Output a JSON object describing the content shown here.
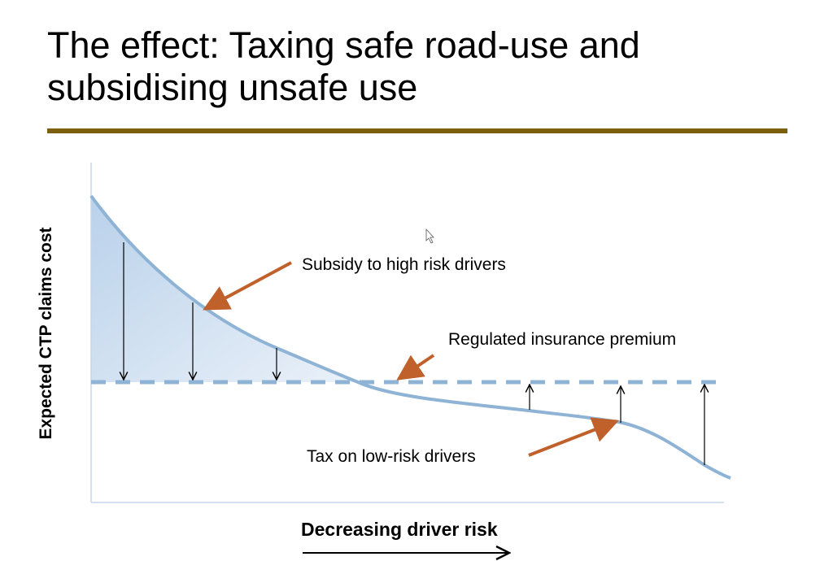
{
  "slide": {
    "title_line1": "The effect: Taxing safe road-use and",
    "title_line2": "subsidising unsafe use"
  },
  "diagram": {
    "y_axis_label": "Expected CTP claims cost",
    "x_axis_label": "Decreasing driver risk",
    "annotations": {
      "subsidy": "Subsidy to high risk drivers",
      "premium": "Regulated insurance premium",
      "tax": "Tax on low-risk drivers"
    },
    "colors": {
      "curve": "#8fb3d5",
      "fill": "#c5d9ee",
      "pointer_arrows": "#c0602a",
      "title_rule": "#7b5f0c"
    }
  }
}
